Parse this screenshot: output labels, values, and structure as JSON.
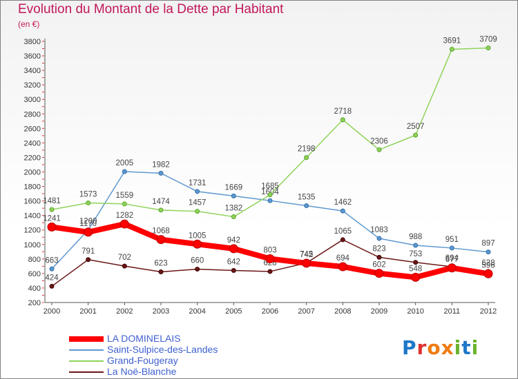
{
  "title": "Evolution du Montant de la Dette par Habitant",
  "subtitle": "(en €)",
  "logo": {
    "text": "Proxiti",
    "colors": [
      "#1f77c8",
      "#f07a10",
      "#6ab22a",
      "#e03030"
    ]
  },
  "chart_data": {
    "type": "line",
    "x": [
      2000,
      2001,
      2002,
      2003,
      2004,
      2005,
      2006,
      2007,
      2008,
      2009,
      2010,
      2011,
      2012
    ],
    "ylim": [
      200,
      3800
    ],
    "yticks": [
      200,
      400,
      600,
      800,
      1000,
      1200,
      1400,
      1600,
      1800,
      2000,
      2200,
      2400,
      2600,
      2800,
      3000,
      3200,
      3400,
      3600,
      3800
    ],
    "grid": false,
    "legend_position": "bottom-left",
    "series": [
      {
        "name": "LA DOMINELAIS",
        "color": "#ff0000",
        "width": 8,
        "values": [
          1241,
          1170,
          1282,
          1068,
          1005,
          942,
          803,
          742,
          694,
          602,
          548,
          677,
          596
        ],
        "labels": [
          "1241",
          "1170",
          "1282",
          "1068",
          "1005",
          "942",
          "803",
          "742",
          "694",
          "602",
          "548",
          "677",
          "596"
        ]
      },
      {
        "name": "Saint-Sulpice-des-Landes",
        "color": "#5f98d0",
        "width": 1.5,
        "values": [
          663,
          1200,
          2005,
          1982,
          1731,
          1669,
          1604,
          1535,
          1462,
          1083,
          988,
          951,
          897
        ],
        "labels": [
          "663",
          "1200",
          "2005",
          "1982",
          "1731",
          "1669",
          "1604",
          "1535",
          "1462",
          "1083",
          "988",
          "951",
          "897"
        ]
      },
      {
        "name": "Grand-Fougeray",
        "color": "#8fd35a",
        "width": 1.5,
        "values": [
          1481,
          1573,
          1559,
          1474,
          1457,
          1382,
          1685,
          2198,
          2718,
          2306,
          2507,
          3691,
          3709
        ],
        "labels": [
          "1481",
          "1573",
          "1559",
          "1474",
          "1457",
          "1382",
          "1685",
          "2198",
          "2718",
          "2306",
          "2507",
          "3691",
          "3709"
        ]
      },
      {
        "name": "La Noë-Blanche",
        "color": "#6b1515",
        "width": 1.5,
        "values": [
          424,
          791,
          702,
          623,
          660,
          642,
          628,
          745,
          1065,
          823,
          753,
          694,
          628
        ],
        "labels": [
          "424",
          "791",
          "702",
          "623",
          "660",
          "642",
          "628",
          "745",
          "1065",
          "823",
          "753",
          "694",
          "628"
        ]
      }
    ]
  }
}
